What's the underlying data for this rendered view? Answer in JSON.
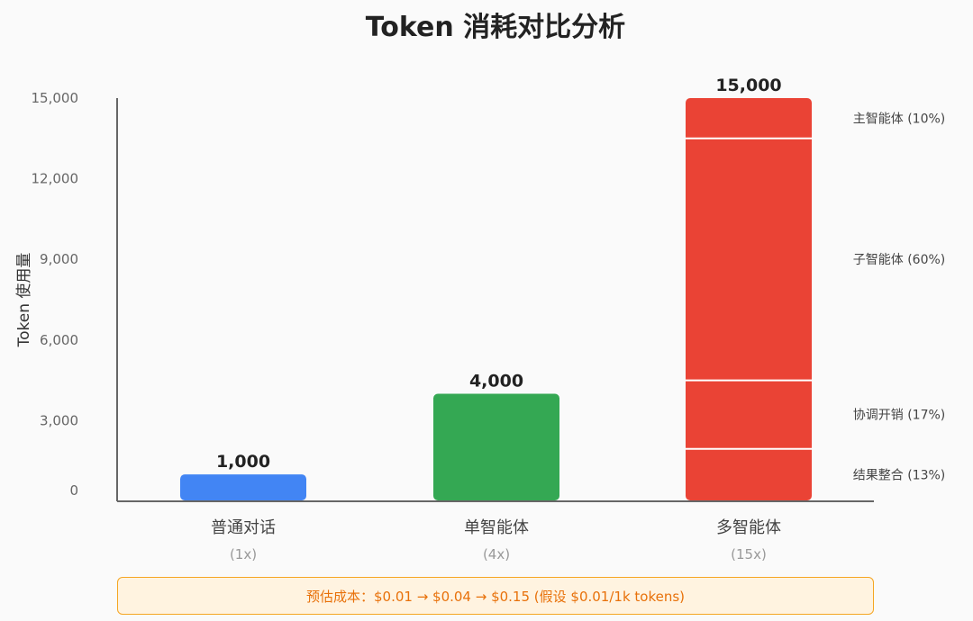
{
  "chart_data": {
    "type": "bar",
    "title": "Token 消耗对比分析",
    "ylabel": "Token 使用量",
    "ylim": [
      0,
      15000
    ],
    "yticks": [
      0,
      3000,
      6000,
      9000,
      12000,
      15000
    ],
    "ytick_labels": [
      "0",
      "3,000",
      "6,000",
      "9,000",
      "12,000",
      "15,000"
    ],
    "categories": [
      "普通对话",
      "单智能体",
      "多智能体"
    ],
    "multipliers": [
      "(1x)",
      "(4x)",
      "(15x)"
    ],
    "values": [
      1000,
      4000,
      15000
    ],
    "value_labels": [
      "1,000",
      "4,000",
      "15,000"
    ],
    "colors": [
      "#4285f4",
      "#34a853",
      "#ea4335"
    ],
    "stacked_breakdown": {
      "category": "多智能体",
      "segments": [
        {
          "label": "结果整合 (13%)",
          "fraction": 0.13
        },
        {
          "label": "协调开销 (17%)",
          "fraction": 0.17
        },
        {
          "label": "子智能体 (60%)",
          "fraction": 0.6
        },
        {
          "label": "主智能体 (10%)",
          "fraction": 0.1
        }
      ]
    },
    "grid": false,
    "legend": "none"
  },
  "footer": {
    "note": "预估成本：$0.01 → $0.04 → $0.15 (假设 $0.01/1k tokens)"
  }
}
